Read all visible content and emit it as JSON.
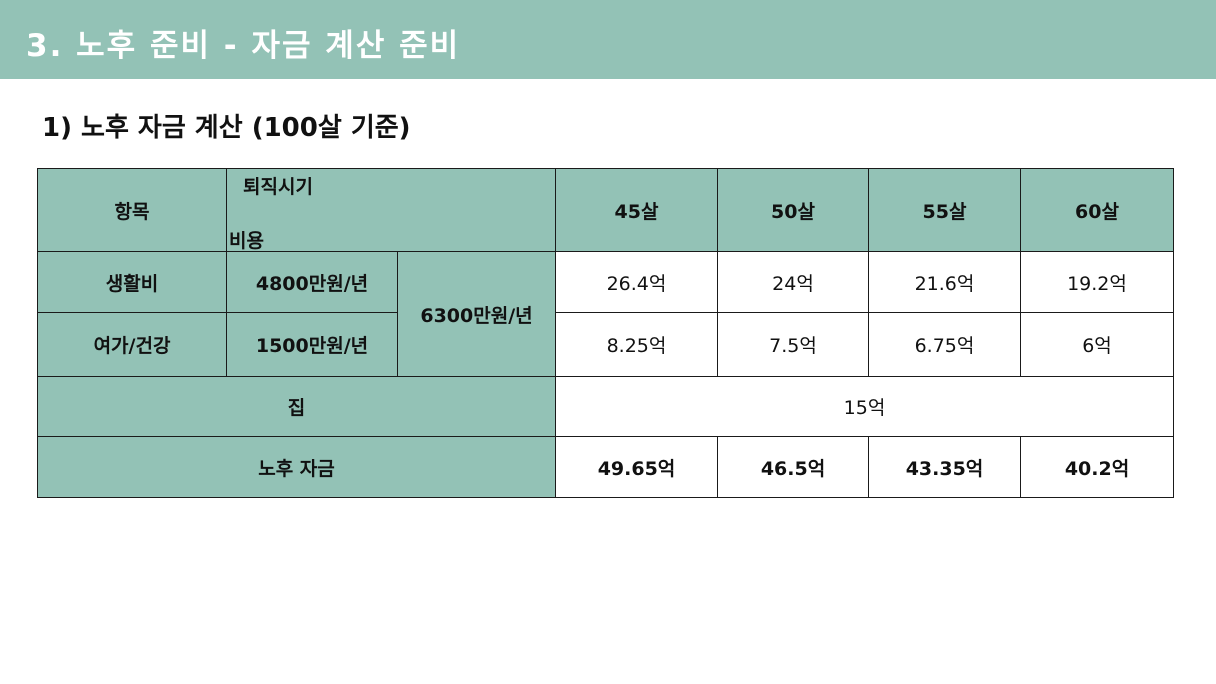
{
  "header": {
    "title": "3. 노후 준비 - 자금 계산 준비"
  },
  "section": {
    "title": "1) 노후 자금 계산 (100살 기준)"
  },
  "table": {
    "col_item": "항목",
    "col_retire_line1": "퇴직시기",
    "col_retire_line2": "비용",
    "ages": [
      "45살",
      "50살",
      "55살",
      "60살"
    ],
    "living": {
      "label": "생활비",
      "cost": "4800만원/년",
      "values": [
        "26.4억",
        "24억",
        "21.6억",
        "19.2억"
      ]
    },
    "leisure": {
      "label": "여가/건강",
      "cost": "1500만원/년",
      "values": [
        "8.25억",
        "7.5억",
        "6.75억",
        "6억"
      ]
    },
    "combined_cost": "6300만원/년",
    "house": {
      "label": "집",
      "value": "15억"
    },
    "total": {
      "label": "노후 자금",
      "values": [
        "49.65억",
        "46.5억",
        "43.35억",
        "40.2억"
      ]
    }
  },
  "colors": {
    "header_bg": "#93c2b6",
    "cell_green": "#93c2b6",
    "border": "#1a1a1a"
  }
}
